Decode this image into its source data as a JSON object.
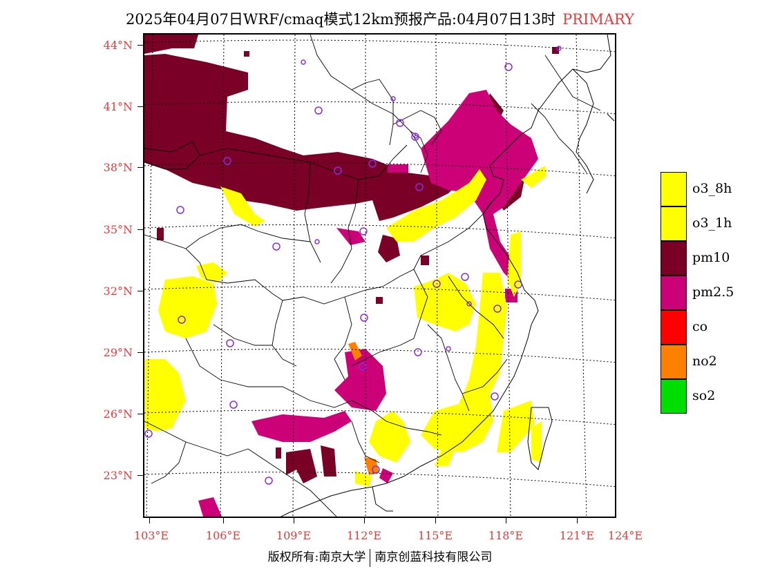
{
  "title": {
    "text": "2025年04月07日WRF/cmaq模式12km预报产品:04月07日13时",
    "tag": "PRIMARY",
    "tag_color": "#e83a3a"
  },
  "map": {
    "lat_labels": [
      "44°N",
      "41°N",
      "38°N",
      "35°N",
      "32°N",
      "29°N",
      "26°N",
      "23°N"
    ],
    "lon_labels": [
      "103°E",
      "106°E",
      "109°E",
      "112°E",
      "115°E",
      "118°E",
      "121°E",
      "124°E"
    ],
    "label_color": "#e83a3a",
    "station_marker_color": "#8a2be2",
    "station_count": 32
  },
  "legend": {
    "items": [
      {
        "label": "o3_8h",
        "color": "#ffff00"
      },
      {
        "label": "o3_1h",
        "color": "#ffff00"
      },
      {
        "label": "pm10",
        "color": "#7a0028"
      },
      {
        "label": "pm2.5",
        "color": "#cc0077"
      },
      {
        "label": "co",
        "color": "#ff0000"
      },
      {
        "label": "no2",
        "color": "#ff7f00"
      },
      {
        "label": "so2",
        "color": "#00dd00"
      }
    ]
  },
  "footer": {
    "left": "版权所有:南京大学",
    "right": "南京创蓝科技有限公司"
  }
}
